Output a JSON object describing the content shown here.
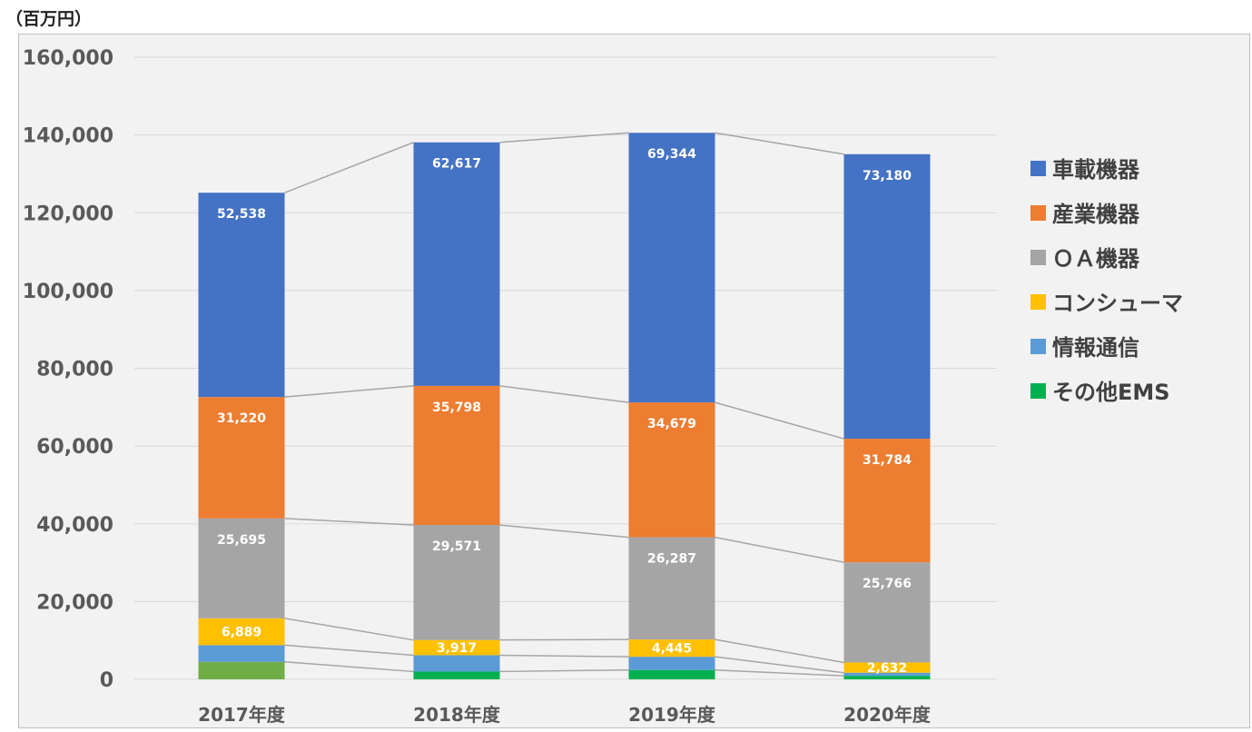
{
  "unit_label": "（百万円）",
  "chart_data": {
    "type": "bar",
    "stacked": true,
    "categories": [
      "2017年度",
      "2018年度",
      "2019年度",
      "2020年度"
    ],
    "ylim": [
      0,
      160000
    ],
    "yticks": [
      0,
      20000,
      40000,
      60000,
      80000,
      100000,
      120000,
      140000,
      160000
    ],
    "ytick_labels": [
      "0",
      "20,000",
      "40,000",
      "60,000",
      "80,000",
      "100,000",
      "120,000",
      "140,000",
      "160,000"
    ],
    "grid": true,
    "legend_position": "right",
    "series_lines": true,
    "series": [
      {
        "name": "その他EMS",
        "color": "#00b050",
        "first_color": "#70ad47",
        "values": [
          4500,
          2000,
          2400,
          900
        ],
        "labels": [
          "",
          "",
          "",
          ""
        ]
      },
      {
        "name": "情報通信",
        "color": "#5b9bd5",
        "values": [
          4300,
          4200,
          3400,
          800
        ],
        "labels": [
          "",
          "",
          "",
          ""
        ]
      },
      {
        "name": "コンシューマ",
        "color": "#ffc000",
        "values": [
          6889,
          3917,
          4445,
          2632
        ],
        "labels": [
          "6,889",
          "3,917",
          "4,445",
          "2,632"
        ]
      },
      {
        "name": "ＯＡ機器",
        "color": "#a5a5a5",
        "values": [
          25695,
          29571,
          26287,
          25766
        ],
        "labels": [
          "25,695",
          "29,571",
          "26,287",
          "25,766"
        ]
      },
      {
        "name": "産業機器",
        "color": "#ed7d31",
        "values": [
          31220,
          35798,
          34679,
          31784
        ],
        "labels": [
          "31,220",
          "35,798",
          "34,679",
          "31,784"
        ]
      },
      {
        "name": "車載機器",
        "color": "#4472c4",
        "values": [
          52538,
          62617,
          69344,
          73180
        ],
        "labels": [
          "52,538",
          "62,617",
          "69,344",
          "73,180"
        ]
      }
    ]
  }
}
